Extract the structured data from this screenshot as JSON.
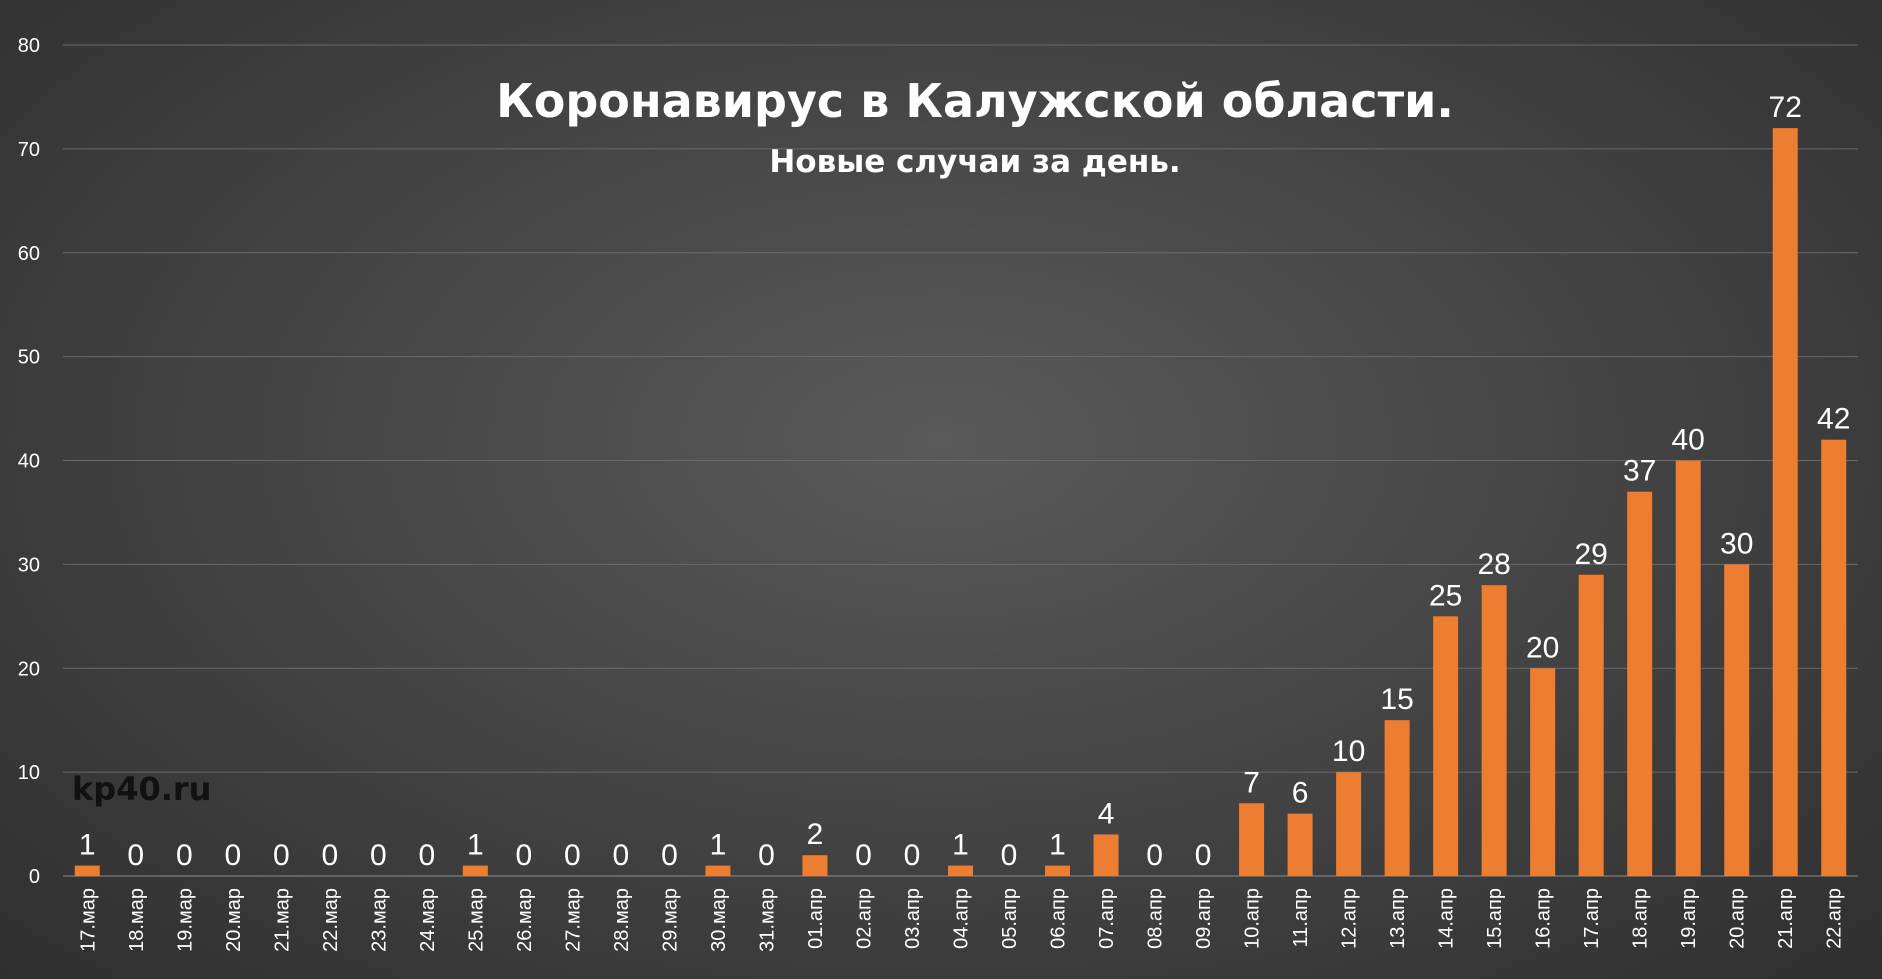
{
  "chart_data": {
    "type": "bar",
    "title": "Коронавирус в Калужской области.",
    "subtitle": "Новые случаи за день.",
    "watermark": "kp40.ru",
    "categories": [
      "17.мар",
      "18.мар",
      "19.мар",
      "20.мар",
      "21.мар",
      "22.мар",
      "23.мар",
      "24.мар",
      "25.мар",
      "26.мар",
      "27.мар",
      "28.мар",
      "29.мар",
      "30.мар",
      "31.мар",
      "01.апр",
      "02.апр",
      "03.апр",
      "04.апр",
      "05.апр",
      "06.апр",
      "07.апр",
      "08.апр",
      "09.апр",
      "10.апр",
      "11.апр",
      "12.апр",
      "13.апр",
      "14.апр",
      "15.апр",
      "16.апр",
      "17.апр",
      "18.апр",
      "19.апр",
      "20.апр",
      "21.апр",
      "22.апр"
    ],
    "values": [
      1,
      0,
      0,
      0,
      0,
      0,
      0,
      0,
      1,
      0,
      0,
      0,
      0,
      1,
      0,
      2,
      0,
      0,
      1,
      0,
      1,
      4,
      0,
      0,
      7,
      6,
      10,
      15,
      25,
      28,
      20,
      29,
      37,
      40,
      30,
      72,
      42
    ],
    "ylim": [
      0,
      80
    ],
    "yticks": [
      0,
      10,
      20,
      30,
      40,
      50,
      60,
      70,
      80
    ],
    "xlabel": "",
    "ylabel": "",
    "grid": true,
    "bar_color": "#ed7d31",
    "data_labels": true
  }
}
